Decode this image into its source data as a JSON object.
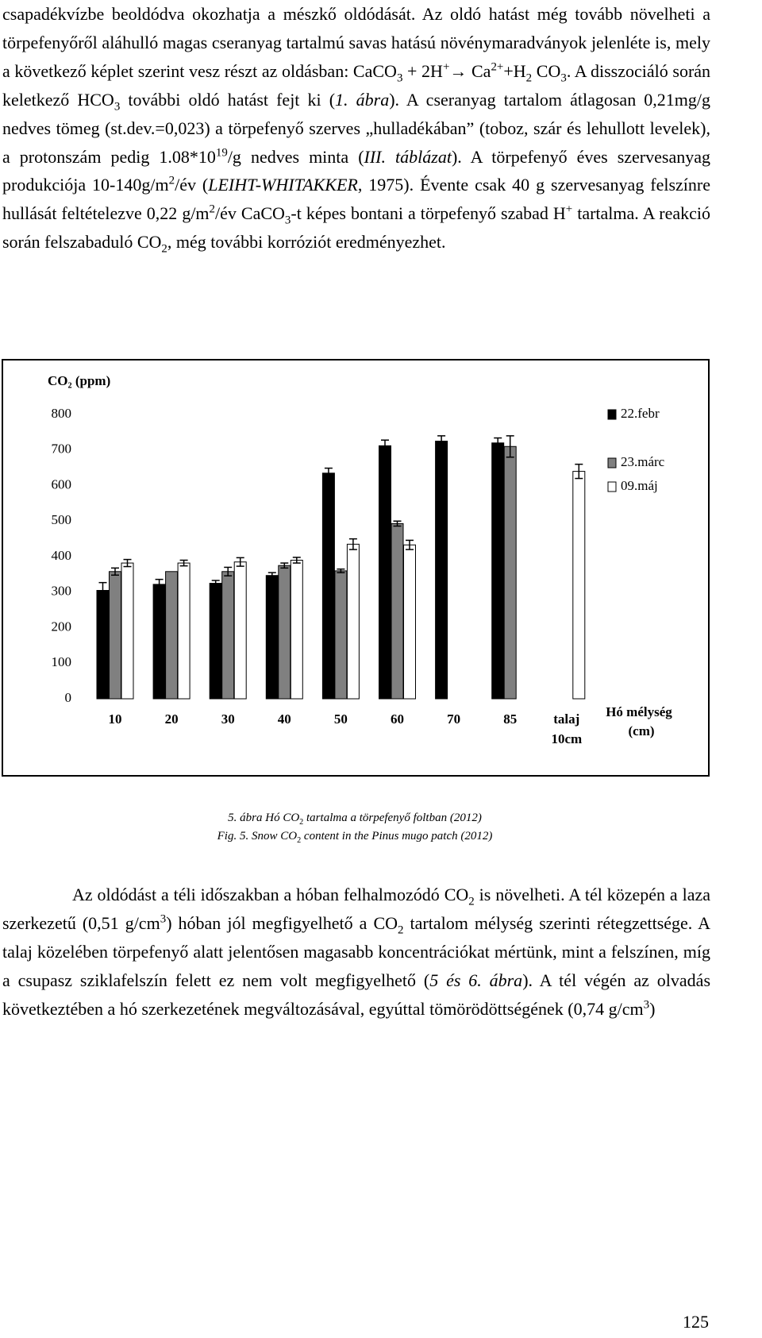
{
  "top_text": [
    "csapadékvízbe beoldódva okozhatja a mészkő oldódását. Az oldó hatást még tovább növelheti a törpefenyőről aláhulló magas cseranyag tartalmú savas hatású növénymaradványok jelenléte is, mely a következő képlet szerint vesz részt az oldásban: CaCO",
    {
      "text": "3",
      "style": "sub"
    },
    " + 2H",
    {
      "text": "+",
      "style": "sup"
    },
    "→ Ca",
    {
      "text": "2+",
      "style": "sup"
    },
    "+H",
    {
      "text": "2",
      "style": "sub"
    },
    " CO",
    {
      "text": "3",
      "style": "sub"
    },
    ". A disszociáló során keletkező HCO",
    {
      "text": "3",
      "style": "sub"
    },
    " további oldó hatást fejt ki (",
    {
      "text": "1. ábra",
      "style": "i"
    },
    "). A cseranyag tartalom átlagosan 0,21mg/g nedves tömeg (st.dev.=0,023) a törpefenyő szerves „hulladékában” (toboz, szár és lehullott levelek), a protonszám pedig 1.08*10",
    {
      "text": "19",
      "style": "sup"
    },
    "/g nedves minta (",
    {
      "text": "III. táblázat",
      "style": "i"
    },
    "). A törpefenyő éves szervesanyag produkciója 10-140g/m",
    {
      "text": "2",
      "style": "sup"
    },
    "/év (",
    {
      "text": "LEIHT-WHITAKKER",
      "style": "i"
    },
    ", 1975). Évente csak 40 g szervesanyag felszínre hullását feltételezve 0,22 g/m",
    {
      "text": "2",
      "style": "sup"
    },
    "/év CaCO",
    {
      "text": "3",
      "style": "sub"
    },
    "-t képes bontani a törpefenyő szabad H",
    {
      "text": "+",
      "style": "sup"
    },
    " tartalma. A reakció során felszabaduló CO",
    {
      "text": "2",
      "style": "sub"
    },
    ", még további korróziót eredményezhet."
  ],
  "chart_data": {
    "type": "bar",
    "ylabel": "CO₂ (ppm)",
    "xlabel": [
      "Hó mélység",
      "(cm)"
    ],
    "categories": [
      "10",
      "20",
      "30",
      "40",
      "50",
      "60",
      "70",
      "85",
      "talaj 10cm"
    ],
    "series": [
      {
        "name": "22.febr",
        "color": "#000000",
        "values": [
          305,
          322,
          325,
          347,
          635,
          712,
          725,
          720,
          null
        ],
        "errors": [
          22,
          14,
          8,
          8,
          14,
          16,
          15,
          14,
          null
        ]
      },
      {
        "name": "23.márc",
        "color": "#808080",
        "values": [
          358,
          358,
          358,
          375,
          360,
          493,
          null,
          710,
          null
        ],
        "errors": [
          10,
          null,
          12,
          7,
          5,
          7,
          null,
          30,
          null
        ]
      },
      {
        "name": "09.máj",
        "color": "#ffffff",
        "values": [
          382,
          382,
          385,
          390,
          435,
          433,
          null,
          null,
          640
        ],
        "errors": [
          10,
          8,
          12,
          8,
          15,
          13,
          null,
          null,
          20
        ]
      }
    ],
    "edgecolor": "#000000",
    "ylim": [
      0,
      800
    ],
    "yticks": [
      0,
      100,
      200,
      300,
      400,
      500,
      600,
      700,
      800
    ],
    "grid": false,
    "legend": "right"
  },
  "caption": [
    [
      {
        "text": "5. ábra Hó CO",
        "style": "i"
      },
      {
        "text": "2",
        "style": "sub"
      },
      {
        "text": " tartalma a törpefenyő foltban (2012)",
        "style": "i"
      }
    ],
    [
      {
        "text": "Fig. 5. Snow CO",
        "style": "i"
      },
      {
        "text": "2",
        "style": "sub"
      },
      {
        "text": " content in the Pinus mugo patch (2012)",
        "style": "i"
      }
    ]
  ],
  "bottom_text": [
    "Az oldódást a téli időszakban a hóban felhalmozódó CO",
    {
      "text": "2",
      "style": "sub"
    },
    " is növelheti. A tél közepén a laza szerkezetű (0,51 g/cm",
    {
      "text": "3",
      "style": "sup"
    },
    ") hóban jól megfigyelhető a CO",
    {
      "text": "2",
      "style": "sub"
    },
    " tartalom mélység szerinti rétegzettsége. A talaj közelében törpefenyő alatt jelentősen magasabb koncentrációkat mértünk, mint a felszínen, míg a csupasz sziklafelszín felett ez nem volt megfigyelhető (",
    {
      "text": "5 és 6. ábra",
      "style": "i"
    },
    "). A tél végén az olvadás következtében a hó szerkezetének megváltozásával, egyúttal tömörödöttségének (0,74 g/cm",
    {
      "text": "3",
      "style": "sup"
    },
    ")"
  ],
  "page_number": "125"
}
